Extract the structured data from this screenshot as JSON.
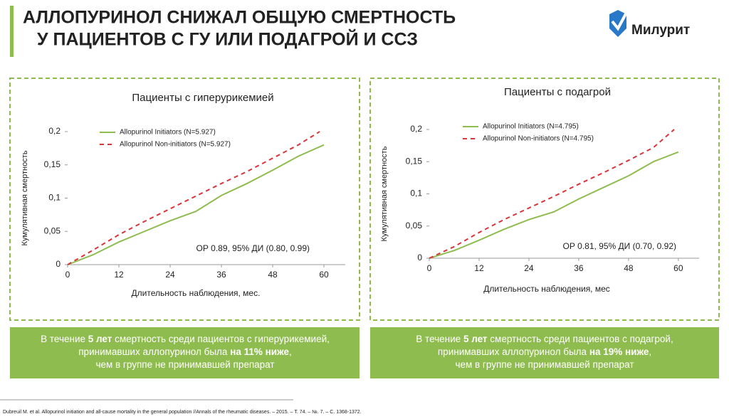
{
  "title": {
    "lines": [
      "АЛЛОПУРИНОЛ СНИЖАЛ ОБЩУЮ СМЕРТНОСТЬ",
      "У ПАЦИЕНТОВ С ГУ ИЛИ ПОДАГРОЙ И ССЗ"
    ]
  },
  "logo": "Милурит",
  "chart_data": [
    {
      "type": "line",
      "title": "Пациенты с гиперурикемией",
      "x_label": "Длительность наблюдения, мес.",
      "y_label": "Кумулятивная смертность",
      "annotation": "ОР 0.89, 95% ДИ (0.80, 0.99)",
      "xlim": [
        0,
        65
      ],
      "xticks": [
        0,
        12,
        24,
        36,
        48,
        60
      ],
      "ylim": [
        0,
        0.2
      ],
      "yticks": [
        0,
        {
          "value": 0.05,
          "label": "0,05"
        },
        {
          "value": 0.1,
          "label": "0,1"
        },
        {
          "value": 0.15,
          "label": "0,15"
        },
        {
          "value": 0.2,
          "label": "0,2"
        }
      ],
      "series": [
        {
          "name": "Allopurinol Initiators (N=5.927)",
          "color": "#8fbc4f",
          "dash": false,
          "x": [
            0,
            6,
            12,
            18,
            24,
            30,
            36,
            42,
            48,
            54,
            60
          ],
          "values": [
            0,
            0.015,
            0.034,
            0.05,
            0.066,
            0.08,
            0.104,
            0.122,
            0.142,
            0.163,
            0.18
          ]
        },
        {
          "name": "Allopurinol Non-initiators (N=5.927)",
          "color": "#d9353a",
          "dash": true,
          "x": [
            0,
            6,
            12,
            18,
            24,
            30,
            36,
            42,
            48,
            54,
            59
          ],
          "values": [
            0,
            0.022,
            0.045,
            0.065,
            0.084,
            0.103,
            0.122,
            0.14,
            0.16,
            0.18,
            0.2
          ]
        }
      ]
    },
    {
      "type": "line",
      "title": "Пациенты с подагрой",
      "x_label": "Длительность наблюдения, мес",
      "y_label": "Кумулятивная смертность",
      "annotation": "ОР 0.81, 95% ДИ (0.70, 0.92)",
      "xlim": [
        0,
        65
      ],
      "xticks": [
        0,
        12,
        24,
        36,
        48,
        60
      ],
      "ylim": [
        0,
        0.2
      ],
      "yticks": [
        0,
        {
          "value": 0.05,
          "label": "0,05"
        },
        {
          "value": 0.1,
          "label": "0,1"
        },
        {
          "value": 0.15,
          "label": "0,15"
        },
        {
          "value": 0.2,
          "label": "0,2"
        }
      ],
      "series": [
        {
          "name": "Allopurinol Initiators (N=4.795)",
          "color": "#8fbc4f",
          "dash": false,
          "x": [
            0,
            6,
            12,
            18,
            24,
            30,
            36,
            42,
            48,
            54,
            60
          ],
          "values": [
            0,
            0.012,
            0.028,
            0.045,
            0.06,
            0.072,
            0.092,
            0.11,
            0.128,
            0.15,
            0.165
          ]
        },
        {
          "name": "Allopurinol Non-initiators (N=4.795)",
          "color": "#d9353a",
          "dash": true,
          "x": [
            0,
            6,
            12,
            18,
            24,
            30,
            36,
            42,
            48,
            54,
            59
          ],
          "values": [
            0,
            0.018,
            0.04,
            0.06,
            0.078,
            0.096,
            0.115,
            0.133,
            0.152,
            0.172,
            0.2
          ]
        }
      ]
    }
  ],
  "summaries": [
    {
      "lines": [
        [
          {
            "text": "В течение ",
            "bold": false
          },
          {
            "text": "5 лет",
            "bold": true
          },
          {
            "text": " смертность среди пациентов с гиперурикемией,",
            "bold": false
          }
        ],
        [
          {
            "text": "принимавших аллопуринол была ",
            "bold": false
          },
          {
            "text": "на 11% ниже",
            "bold": true
          },
          {
            "text": ",",
            "bold": false
          }
        ],
        [
          {
            "text": "чем в группе не принимавшей препарат",
            "bold": false
          }
        ]
      ]
    },
    {
      "lines": [
        [
          {
            "text": "В течение ",
            "bold": false
          },
          {
            "text": "5 лет",
            "bold": true
          },
          {
            "text": " смертность среди пациентов с подагрой,",
            "bold": false
          }
        ],
        [
          {
            "text": "принимавших аллопуринол была ",
            "bold": false
          },
          {
            "text": "на 19% ниже",
            "bold": true
          },
          {
            "text": ",",
            "bold": false
          }
        ],
        [
          {
            "text": "чем в группе не принимавшей препарат",
            "bold": false
          }
        ]
      ]
    }
  ],
  "footnote": "Dubreuil M. et al. Allopurinol initiation and all-cause mortality in the general population //Annals of the rheumatic diseases. – 2015. – Т. 74. – №. 7. – С. 1368-1372."
}
